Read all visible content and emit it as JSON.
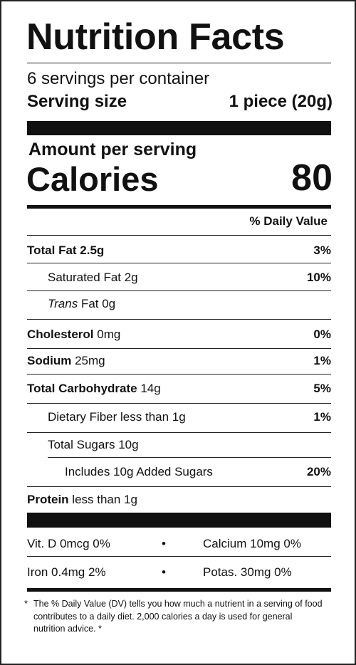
{
  "title": "Nutrition Facts",
  "servings": "6 servings per container",
  "serving_size": {
    "label": "Serving size",
    "value": "1 piece (20g)"
  },
  "amount_per_serving": "Amount per serving",
  "calories": {
    "label": "Calories",
    "value": 80
  },
  "daily_value_header": "% Daily Value",
  "nutrients": [
    {
      "bold": "Total Fat 2.5g",
      "dv": "3%"
    },
    {
      "text": "Saturated Fat 2g",
      "dv": "10%"
    },
    {
      "italic": "Trans",
      "text": "Fat 0g"
    },
    {
      "bold": "Cholesterol",
      "text": "0mg",
      "dv": "0%"
    },
    {
      "bold": "Sodium",
      "text": "25mg",
      "dv": "1%"
    },
    {
      "bold": "Total Carbohydrate",
      "text": "14g",
      "dv": "5%"
    },
    {
      "text": "Dietary Fiber less than 1g",
      "dv": "1%"
    },
    {
      "text": "Total Sugars 10g"
    },
    {
      "text": "Includes 10g Added Sugars",
      "dv": "20%"
    },
    {
      "bold": "Protein",
      "text": "less than 1g"
    }
  ],
  "vitamins": [
    [
      "Vit. D 0mcg 0%",
      "Calcium 10mg 0%"
    ],
    [
      "Iron 0.4mg 2%",
      "Potas. 30mg 0%"
    ]
  ],
  "separator": "•",
  "footnote": {
    "marker": "*",
    "text": "The % Daily Value (DV) tells you how much a nutrient in a serving of food contributes to a daily diet. 2,000 calories a day is used for general nutrition advice."
  }
}
